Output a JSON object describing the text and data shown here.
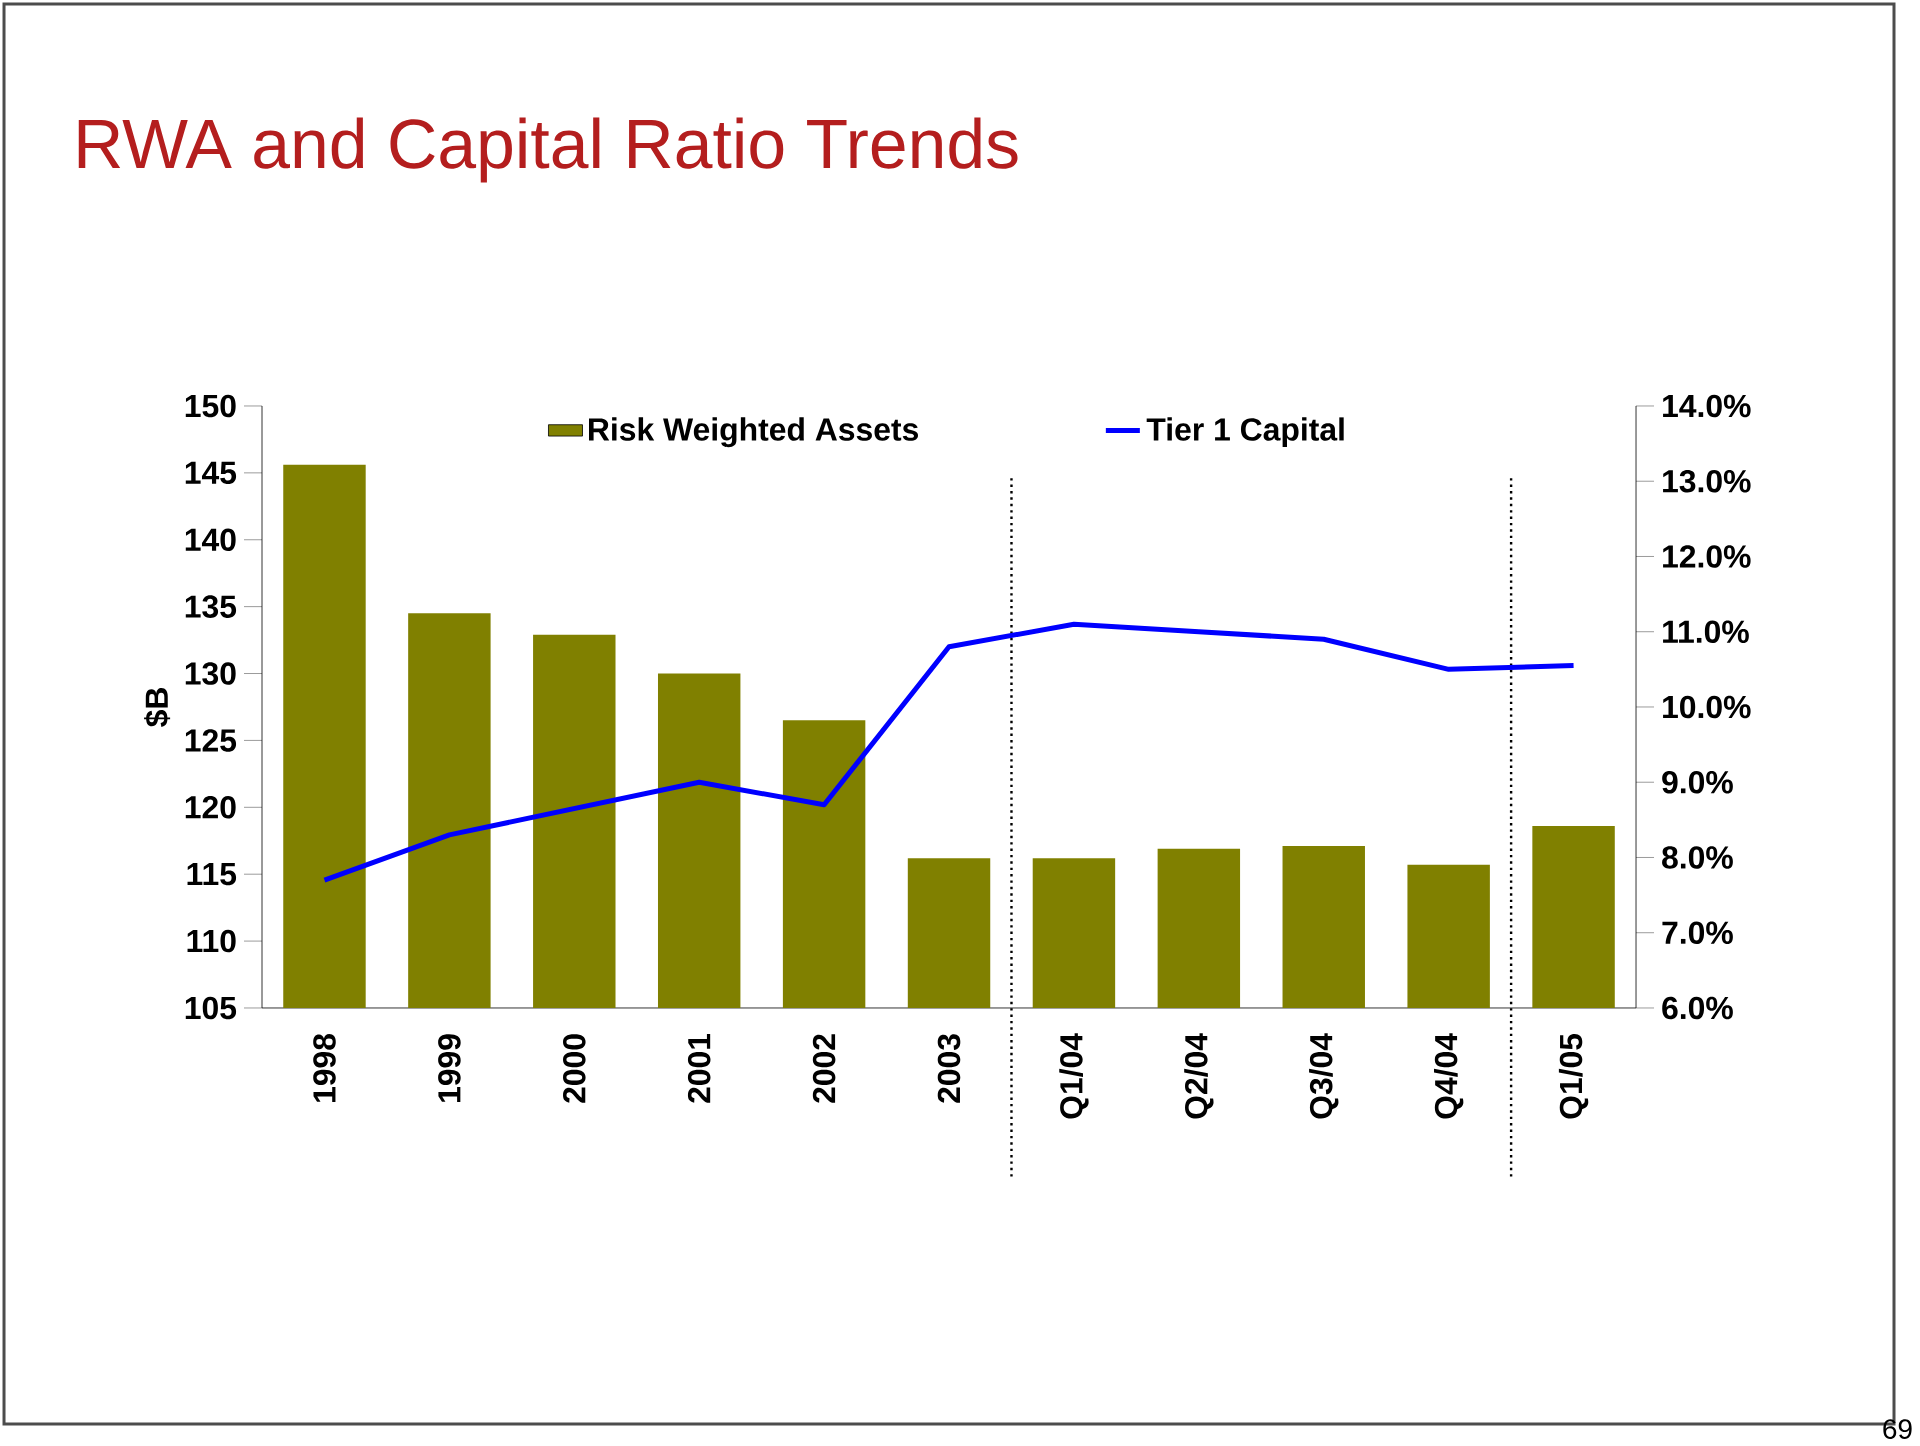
{
  "chart_data": {
    "type": "bar",
    "title": "RWA and Capital Ratio Trends",
    "ylabel": "$B",
    "categories": [
      "1998",
      "1999",
      "2000",
      "2001",
      "2002",
      "2003",
      "Q1/04",
      "Q2/04",
      "Q3/04",
      "Q4/04",
      "Q1/05"
    ],
    "series": [
      {
        "name": "Risk Weighted Assets",
        "color": "#808000",
        "values": [
          145.6,
          134.5,
          132.9,
          130.0,
          126.5,
          116.2,
          116.2,
          116.9,
          117.1,
          115.7,
          118.6
        ]
      },
      {
        "name": "Tier 1 Capital",
        "type": "line",
        "axis": "y2",
        "color": "#0000ff",
        "values": [
          7.7,
          8.3,
          8.65,
          9.0,
          8.7,
          10.8,
          11.1,
          11.0,
          10.9,
          10.5,
          10.55
        ]
      }
    ],
    "ylim": [
      105,
      150
    ],
    "yticks": [
      105,
      110,
      115,
      120,
      125,
      130,
      135,
      140,
      145,
      150
    ],
    "y2lim": [
      6,
      14
    ],
    "y2ticks": [
      {
        "value": 6,
        "label": "6.0%"
      },
      {
        "value": 7,
        "label": "7.0%"
      },
      {
        "value": 8,
        "label": "8.0%"
      },
      {
        "value": 9,
        "label": "9.0%"
      },
      {
        "value": 10,
        "label": "10.0%"
      },
      {
        "value": 11,
        "label": "11.0%"
      },
      {
        "value": 12,
        "label": "12.0%"
      },
      {
        "value": 13,
        "label": "13.0%"
      },
      {
        "value": 14,
        "label": "14.0%"
      }
    ],
    "legend": "top",
    "grid": false,
    "marker": "none",
    "annotations": [
      "69"
    ]
  }
}
